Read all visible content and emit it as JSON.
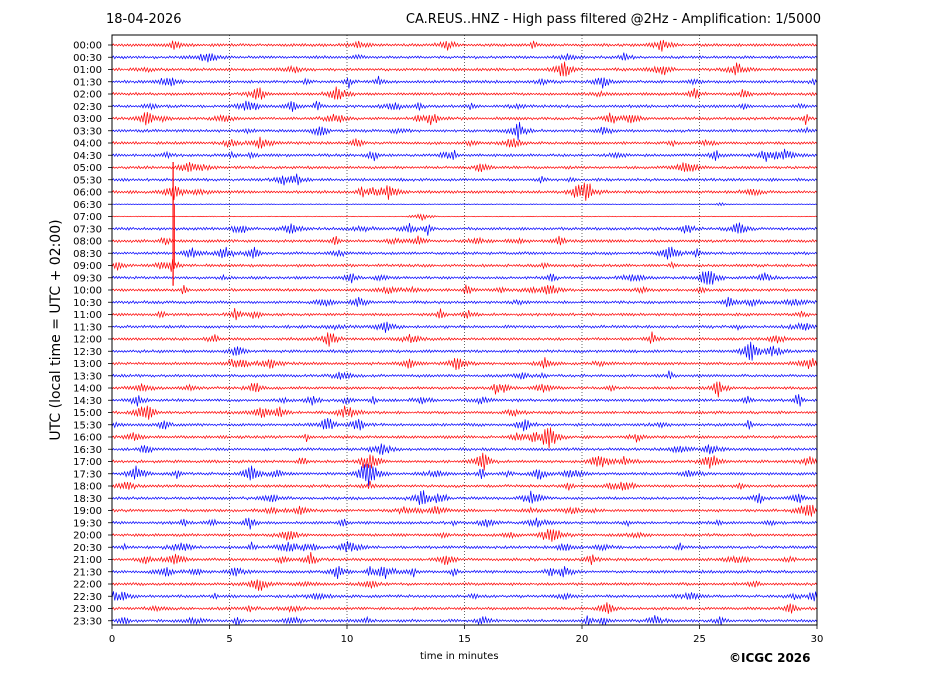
{
  "date": "18-04-2026",
  "title": "CA.REUS..HNZ - High pass filtered @2Hz - Amplification: 1/5000",
  "copyright": "©ICGC 2026",
  "colors": {
    "trace_a": "#ff0000",
    "trace_b": "#0000ff",
    "grid": "#000000"
  },
  "chart_data": {
    "type": "line",
    "title": "CA.REUS..HNZ - High pass filtered @2Hz - Amplification: 1/5000",
    "xlabel": "time in minutes",
    "ylabel": "UTC (local time = UTC + 02:00)",
    "xlim": [
      0,
      30
    ],
    "x_ticks": [
      "0",
      "5",
      "10",
      "15",
      "20",
      "25",
      "30"
    ],
    "y_ticks": [
      "00:00",
      "00:30",
      "01:00",
      "01:30",
      "02:00",
      "02:30",
      "03:00",
      "03:30",
      "04:00",
      "04:30",
      "05:00",
      "05:30",
      "06:00",
      "06:30",
      "07:00",
      "07:30",
      "08:00",
      "08:30",
      "09:00",
      "09:30",
      "10:00",
      "10:30",
      "11:00",
      "11:30",
      "12:00",
      "12:30",
      "13:00",
      "13:30",
      "14:00",
      "14:30",
      "15:00",
      "15:30",
      "16:00",
      "16:30",
      "17:00",
      "17:30",
      "18:00",
      "18:30",
      "19:00",
      "19:30",
      "20:00",
      "20:30",
      "21:00",
      "21:30",
      "22:00",
      "22:30",
      "23:00",
      "23:30"
    ],
    "grid": "vertical dotted lines every 5 minutes",
    "series_colors_alternate": [
      "#ff0000",
      "#0000ff"
    ],
    "notable_events": [
      {
        "row": "06:00",
        "minute": 2.6,
        "description": "large amplitude spike spanning rows 06:00–09:30"
      },
      {
        "row": "17:00",
        "minute": 11.0
      },
      {
        "row": "17:00",
        "minute": 15.8
      },
      {
        "row": "17:00",
        "minute": 20.7
      },
      {
        "row": "17:00",
        "minute": 25.5
      },
      {
        "row": "17:30",
        "minute": 1.0
      },
      {
        "row": "17:30",
        "minute": 5.9
      },
      {
        "row": "17:30",
        "minute": 10.8
      },
      {
        "row": "18:30",
        "minute": 13.2
      },
      {
        "row": "18:30",
        "minute": 17.9
      },
      {
        "row": "15:00",
        "minute": 1.4
      },
      {
        "row": "03:30",
        "minute": 17.3
      },
      {
        "row": "02:00",
        "minute": 9.6
      }
    ]
  }
}
